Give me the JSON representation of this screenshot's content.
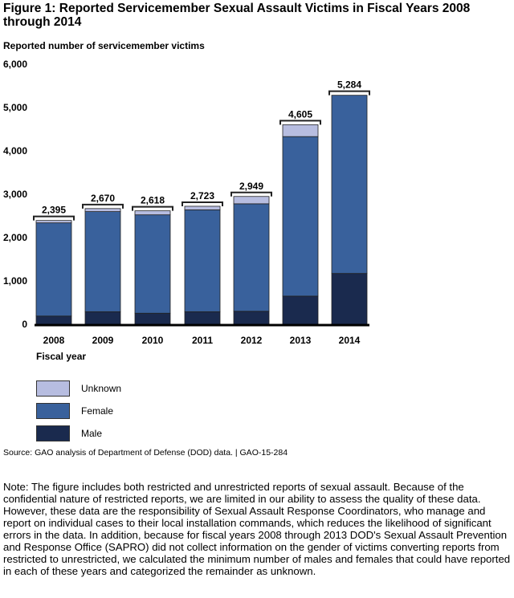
{
  "chart_data": {
    "type": "bar",
    "stacked": true,
    "title": "Figure 1: Reported Servicemember Sexual Assault Victims in Fiscal Years 2008 through 2014",
    "ylabel": "Reported number of servicemember victims",
    "xlabel": "Fiscal year",
    "ylim": [
      0,
      6000
    ],
    "yticks": [
      "0",
      "1,000",
      "2,000",
      "3,000",
      "4,000",
      "5,000",
      "6,000"
    ],
    "categories": [
      "2008",
      "2009",
      "2010",
      "2011",
      "2012",
      "2013",
      "2014"
    ],
    "series": [
      {
        "name": "Male",
        "color": "#1a2a4e",
        "values": [
          190,
          290,
          255,
          290,
          300,
          650,
          1173
        ]
      },
      {
        "name": "Female",
        "color": "#39619c",
        "values": [
          2150,
          2310,
          2270,
          2350,
          2480,
          3680,
          4111
        ]
      },
      {
        "name": "Unknown",
        "color": "#b7bde0",
        "values": [
          55,
          70,
          93,
          83,
          169,
          275,
          0
        ]
      }
    ],
    "totals": [
      "2,395",
      "2,670",
      "2,618",
      "2,723",
      "2,949",
      "4,605",
      "5,284"
    ],
    "legend": [
      "Unknown",
      "Female",
      "Male"
    ],
    "legend_placement": "bottom-left"
  },
  "source": "Source: GAO analysis of Department of Defense (DOD) data.  |  GAO-15-284",
  "note": "Note: The figure includes both restricted and unrestricted reports of sexual assault. Because of the confidential nature of restricted reports, we are limited in our ability to assess the quality of these data. However, these data are the responsibility of Sexual Assault Response Coordinators, who manage and report on individual cases to their local installation commands, which reduces the likelihood of significant errors in the data. In addition, because for fiscal years 2008 through 2013 DOD's Sexual Assault Prevention and Response Office (SAPRO) did not collect information on the gender of victims converting reports from restricted to unrestricted, we calculated the minimum number of males and females that could have reported in each of these years and categorized the remainder as unknown."
}
